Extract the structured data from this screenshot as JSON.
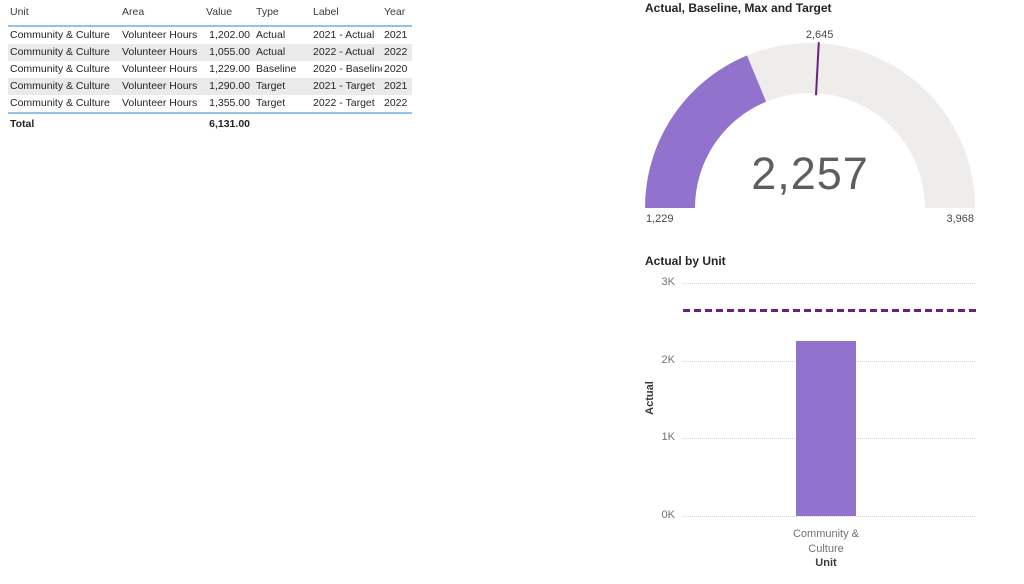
{
  "table": {
    "columns": [
      "Unit",
      "Area",
      "Value",
      "Type",
      "Label",
      "Year"
    ],
    "rows": [
      [
        "Community & Culture",
        "Volunteer Hours",
        "1,202.00",
        "Actual",
        "2021 - Actual",
        "2021"
      ],
      [
        "Community & Culture",
        "Volunteer Hours",
        "1,055.00",
        "Actual",
        "2022 - Actual",
        "2022"
      ],
      [
        "Community & Culture",
        "Volunteer Hours",
        "1,229.00",
        "Baseline",
        "2020 - Baseline",
        "2020"
      ],
      [
        "Community & Culture",
        "Volunteer Hours",
        "1,290.00",
        "Target",
        "2021 - Target",
        "2021"
      ],
      [
        "Community & Culture",
        "Volunteer Hours",
        "1,355.00",
        "Target",
        "2022 - Target",
        "2022"
      ]
    ],
    "total_label": "Total",
    "total_value": "6,131.00"
  },
  "gauge": {
    "title": "Actual, Baseline, Max and Target",
    "value_label": "2,257",
    "min_label": "1,229",
    "max_label": "3,968",
    "target_label": "2,645"
  },
  "bar": {
    "title": "Actual by Unit",
    "y_axis_title": "Actual",
    "x_axis_title": "Unit",
    "category_line1": "Community &",
    "category_line2": "Culture",
    "y_ticks_top_to_bottom": [
      "3K",
      "2K",
      "1K",
      "0K"
    ]
  },
  "colors": {
    "accent-purple": "#9173CE",
    "target-purple": "#6B2080",
    "gauge-track": "#EFEDEB",
    "table-border-blue": "#8FC2EE",
    "table-alt-row": "#EAEAEA",
    "title-text": "#252423",
    "muted-text": "#75726F"
  },
  "chart_data": [
    {
      "type": "table",
      "columns": [
        "Unit",
        "Area",
        "Value",
        "Type",
        "Label",
        "Year"
      ],
      "rows": [
        [
          "Community & Culture",
          "Volunteer Hours",
          1202.0,
          "Actual",
          "2021 - Actual",
          2021
        ],
        [
          "Community & Culture",
          "Volunteer Hours",
          1055.0,
          "Actual",
          "2022 - Actual",
          2022
        ],
        [
          "Community & Culture",
          "Volunteer Hours",
          1229.0,
          "Baseline",
          "2020 - Baseline",
          2020
        ],
        [
          "Community & Culture",
          "Volunteer Hours",
          1290.0,
          "Target",
          "2021 - Target",
          2021
        ],
        [
          "Community & Culture",
          "Volunteer Hours",
          1355.0,
          "Target",
          "2022 - Target",
          2022
        ]
      ],
      "total": 6131.0
    },
    {
      "type": "gauge",
      "title": "Actual, Baseline, Max and Target",
      "min": 1229,
      "max": 3968,
      "value": 2257,
      "target": 2645
    },
    {
      "type": "bar",
      "title": "Actual by Unit",
      "categories": [
        "Community & Culture"
      ],
      "values": [
        2257
      ],
      "target_line": 2645,
      "xlabel": "Unit",
      "ylabel": "Actual",
      "ylim": [
        0,
        3000
      ],
      "y_ticks": [
        "0K",
        "1K",
        "2K",
        "3K"
      ],
      "grid": true,
      "legend": false
    }
  ]
}
